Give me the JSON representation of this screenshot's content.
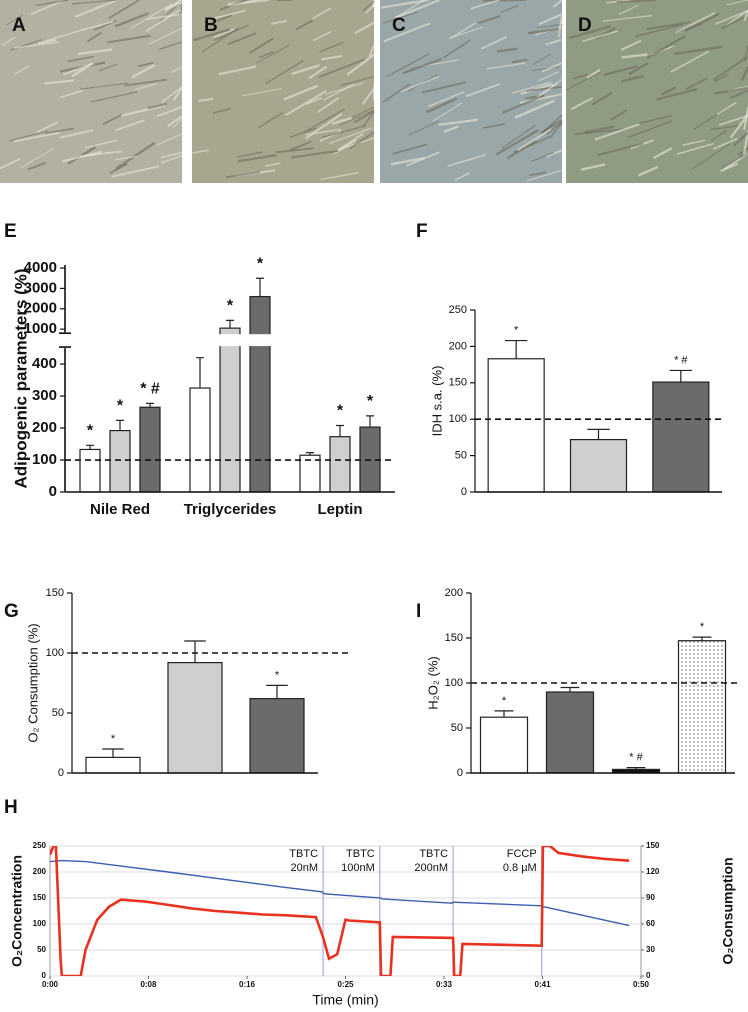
{
  "images": [
    {
      "label": "A"
    },
    {
      "label": "B"
    },
    {
      "label": "C"
    },
    {
      "label": "D"
    }
  ],
  "chart_data": [
    {
      "type": "bar",
      "panel": "E",
      "y_label": "Adipogenic parameters (%)",
      "categories": [
        "Nile Red",
        "Triglycerides",
        "Leptin"
      ],
      "series": [
        {
          "color": "#ffffff",
          "values": [
            133,
            325,
            115
          ],
          "errors": [
            13,
            95,
            8
          ],
          "significance": [
            "*",
            "*",
            null
          ]
        },
        {
          "color": "#cfcfcf",
          "values": [
            192,
            1050,
            173
          ],
          "errors": [
            32,
            380,
            35
          ],
          "significance": [
            "*",
            "*",
            "*"
          ]
        },
        {
          "color": "#6b6b6b",
          "values": [
            265,
            2600,
            203
          ],
          "errors": [
            12,
            900,
            35
          ],
          "significance": [
            "* #",
            "*",
            "*"
          ]
        }
      ],
      "ylim": [
        0,
        4150
      ],
      "ybreak": [
        450,
        850
      ],
      "yticks": [
        0,
        100,
        200,
        300,
        400,
        1000,
        2000,
        3000,
        4000
      ],
      "reference_line": 100
    },
    {
      "type": "bar",
      "panel": "F",
      "y_label": "IDH s.a. (%)",
      "values": [
        183,
        72,
        151
      ],
      "errors": [
        25,
        14,
        16
      ],
      "colors": [
        "#ffffff",
        "#cfcfcf",
        "#6b6b6b"
      ],
      "significance": [
        "*",
        null,
        "* #"
      ],
      "ylim": [
        0,
        250
      ],
      "yticks": [
        0,
        50,
        100,
        150,
        200,
        250
      ],
      "reference_line": 100
    },
    {
      "type": "bar",
      "panel": "G",
      "y_label": "O₂ Consumption (%)",
      "values": [
        13,
        92,
        62
      ],
      "errors": [
        7,
        18,
        11
      ],
      "colors": [
        "#ffffff",
        "#cfcfcf",
        "#6b6b6b"
      ],
      "significance": [
        "*",
        null,
        "*"
      ],
      "ylim": [
        0,
        150
      ],
      "yticks": [
        0,
        50,
        100,
        150
      ],
      "reference_line": 100
    },
    {
      "type": "bar",
      "panel": "I",
      "y_label": "H₂O₂ (%)",
      "values": [
        62,
        90,
        4,
        147
      ],
      "errors": [
        7,
        5,
        2,
        4
      ],
      "colors": [
        "#ffffff",
        "#6b6b6b",
        "#111111",
        "#ffffff"
      ],
      "patterns": [
        null,
        null,
        null,
        "dots"
      ],
      "significance": [
        "*",
        null,
        "* #",
        "*"
      ],
      "ylim": [
        0,
        200
      ],
      "yticks": [
        0,
        50,
        100,
        150,
        200
      ],
      "reference_line": 100
    },
    {
      "type": "line",
      "panel": "H",
      "x_label": "Time (min)",
      "y_label": "O₂Concentration",
      "y2_label": "O₂Consumption",
      "xlim": [
        0,
        50
      ],
      "xticks": [
        {
          "value": 0,
          "label": "0:00"
        },
        {
          "value": 8.33,
          "label": "0:08"
        },
        {
          "value": 16.67,
          "label": "0:16"
        },
        {
          "value": 25,
          "label": "0:25"
        },
        {
          "value": 33.33,
          "label": "0:33"
        },
        {
          "value": 41.67,
          "label": "0:41"
        },
        {
          "value": 50,
          "label": "0:50"
        }
      ],
      "ylim": [
        0,
        250
      ],
      "yticks": [
        0,
        50,
        100,
        150,
        200,
        250
      ],
      "y2lim": [
        0,
        150
      ],
      "y2ticks": [
        0,
        30,
        60,
        90,
        120,
        150
      ],
      "grid": true,
      "series": [
        {
          "color": "#3a5fb0",
          "x": [
            0,
            1,
            3,
            10,
            20,
            23,
            23.2,
            28,
            28.1,
            34,
            34.1,
            41.6,
            41.8,
            49
          ],
          "values": [
            220,
            222,
            220,
            200,
            170,
            162,
            158,
            150,
            148,
            140,
            142,
            135,
            133,
            97
          ]
        },
        {
          "color": "#e8311f",
          "axis": "y2",
          "x": [
            0,
            0.3,
            0.5,
            0.9,
            1.0,
            2.6,
            3.0,
            4,
            5,
            6,
            8,
            10,
            12,
            14,
            16,
            18,
            20,
            22.5,
            23.1,
            23.6,
            24.3,
            25,
            25.3,
            27.9,
            28.0,
            28.8,
            29.0,
            34.1,
            34.2,
            34.7,
            34.9,
            41.6,
            41.7,
            42.3,
            43,
            45,
            47,
            49
          ],
          "values": [
            140,
            150,
            150,
            20,
            0,
            0,
            30,
            65,
            80,
            88,
            86,
            82,
            78,
            75,
            73,
            71,
            70,
            68,
            45,
            20,
            25,
            65,
            64,
            62,
            0,
            0,
            45,
            44,
            0,
            0,
            37,
            35,
            150,
            150,
            142,
            138,
            135,
            133
          ]
        }
      ],
      "events": [
        {
          "x": 23.1,
          "label": [
            "TBTC",
            "20nM"
          ]
        },
        {
          "x": 27.9,
          "label": [
            "TBTC",
            "100nM"
          ]
        },
        {
          "x": 34.1,
          "label": [
            "TBTC",
            "200nM"
          ]
        },
        {
          "x": 41.6,
          "label": [
            "FCCP",
            "0.8 µM"
          ]
        }
      ]
    }
  ]
}
